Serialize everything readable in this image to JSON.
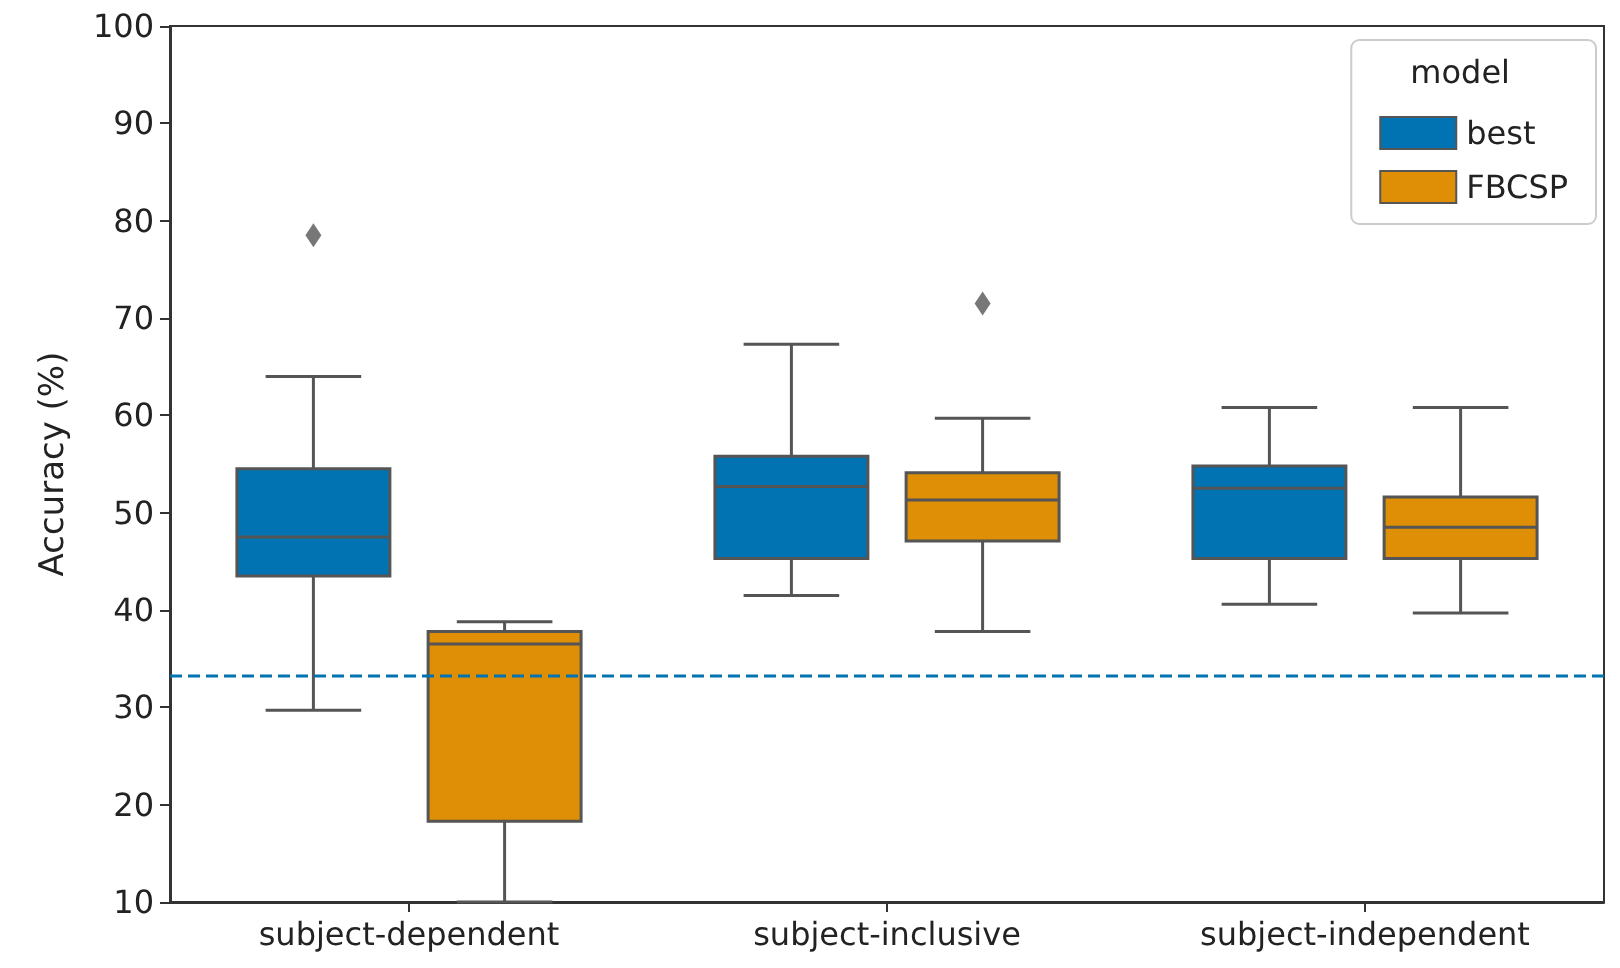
{
  "chart_data": {
    "type": "box",
    "ylabel": "Accuracy (%)",
    "legend_title": "model",
    "categories": [
      "subject-dependent",
      "subject-inclusive",
      "subject-independent"
    ],
    "series": [
      {
        "name": "best",
        "color": "#0173b2",
        "boxes": [
          {
            "low": 29.7,
            "q1": 43.5,
            "median": 47.5,
            "q3": 54.5,
            "high": 64,
            "outliers": [
              78.5
            ]
          },
          {
            "low": 41.5,
            "q1": 45.3,
            "median": 52.7,
            "q3": 55.8,
            "high": 67.3
          },
          {
            "low": 40.6,
            "q1": 45.3,
            "median": 52.5,
            "q3": 54.8,
            "high": 60.8
          }
        ]
      },
      {
        "name": "FBCSP",
        "color": "#de8f05",
        "boxes": [
          {
            "low": 10,
            "q1": 18.3,
            "median": 36.5,
            "q3": 37.8,
            "high": 38.8
          },
          {
            "low": 37.8,
            "q1": 47.1,
            "median": 51.3,
            "q3": 54.1,
            "high": 59.7,
            "outliers": [
              71.5
            ]
          },
          {
            "low": 39.7,
            "q1": 45.3,
            "median": 48.5,
            "q3": 51.6,
            "high": 60.8
          }
        ]
      }
    ],
    "ylim": [
      10,
      100
    ],
    "yticks": [
      10,
      20,
      30,
      40,
      50,
      60,
      70,
      80,
      90,
      100
    ],
    "ref_lines": [
      {
        "axis": "y",
        "value": 33.3,
        "color": "#0173b2",
        "line_style": "dashed"
      }
    ],
    "grid": false,
    "legend": "top right"
  }
}
